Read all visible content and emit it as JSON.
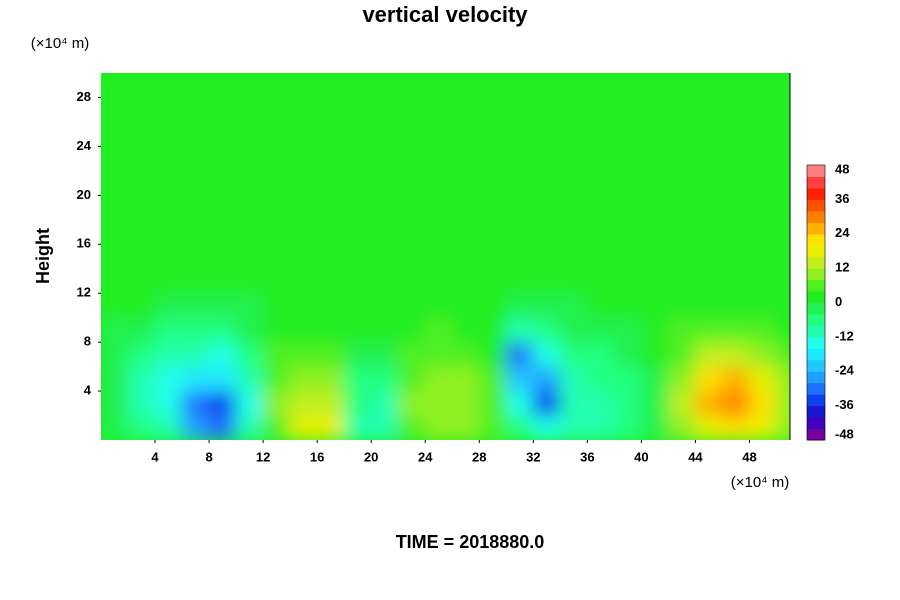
{
  "chart_data": {
    "type": "contour",
    "title": "vertical velocity",
    "ylabel": "Height",
    "xunit": "(×10⁴ m)",
    "yunit": "(×10⁴ m)",
    "footer": "TIME = 2018880.0",
    "xlim": [
      0,
      51
    ],
    "ylim": [
      0,
      30
    ],
    "xticks": [
      4,
      8,
      12,
      16,
      20,
      24,
      28,
      32,
      36,
      40,
      44,
      48
    ],
    "yticks": [
      4,
      8,
      12,
      16,
      20,
      24,
      28
    ],
    "x": [
      1,
      3,
      5,
      7,
      9,
      11,
      13,
      15,
      17,
      19,
      21,
      23,
      25,
      27,
      29,
      31,
      33,
      35,
      37,
      39,
      41,
      43,
      45,
      47,
      49,
      51
    ],
    "y": [
      1,
      3,
      5,
      7,
      9,
      11,
      13,
      15,
      17,
      19,
      21,
      23,
      25,
      27,
      29
    ],
    "z": [
      [
        -4,
        -8,
        -12,
        -26,
        -32,
        -12,
        6,
        16,
        18,
        -10,
        -12,
        6,
        8,
        8,
        6,
        -6,
        -14,
        -10,
        -10,
        -8,
        -4,
        8,
        18,
        22,
        16,
        8
      ],
      [
        -4,
        -10,
        -14,
        -30,
        -36,
        -14,
        8,
        14,
        12,
        -8,
        -10,
        8,
        10,
        10,
        6,
        -16,
        -34,
        -12,
        -10,
        -8,
        -4,
        12,
        24,
        30,
        20,
        10
      ],
      [
        -4,
        -10,
        -14,
        -18,
        -20,
        -12,
        6,
        10,
        8,
        -6,
        -6,
        6,
        8,
        8,
        4,
        -24,
        -28,
        -10,
        -8,
        -6,
        -2,
        10,
        20,
        26,
        18,
        8
      ],
      [
        -2,
        -8,
        -12,
        -12,
        -14,
        -8,
        4,
        6,
        6,
        -2,
        -2,
        4,
        6,
        6,
        2,
        -30,
        -16,
        -6,
        -6,
        -4,
        0,
        6,
        12,
        14,
        10,
        6
      ],
      [
        -1,
        -4,
        -6,
        -6,
        -6,
        -4,
        2,
        2,
        2,
        0,
        0,
        2,
        4,
        2,
        0,
        -12,
        -6,
        -4,
        -4,
        -2,
        0,
        4,
        6,
        6,
        4,
        2
      ],
      [
        0,
        0,
        -2,
        -2,
        -2,
        -2,
        0,
        0,
        0,
        0,
        0,
        0,
        2,
        2,
        0,
        -2,
        -2,
        -2,
        0,
        0,
        0,
        0,
        2,
        2,
        0,
        0
      ],
      [
        0,
        0,
        0,
        0,
        0,
        0,
        0,
        0,
        0,
        0,
        0,
        0,
        0,
        2,
        0,
        0,
        0,
        0,
        0,
        0,
        0,
        0,
        0,
        0,
        0,
        0
      ],
      [
        0,
        0,
        0,
        0,
        0,
        0,
        0,
        0,
        0,
        0,
        0,
        0,
        0,
        0,
        0,
        0,
        0,
        0,
        0,
        0,
        0,
        0,
        0,
        0,
        0,
        0
      ],
      [
        0,
        0,
        0,
        0,
        0,
        0,
        0,
        0,
        0,
        0,
        0,
        0,
        0,
        0,
        0,
        0,
        0,
        0,
        0,
        0,
        0,
        0,
        0,
        0,
        0,
        0
      ],
      [
        0,
        0,
        0,
        0,
        0,
        0,
        0,
        0,
        0,
        0,
        0,
        0,
        0,
        0,
        0,
        0,
        0,
        0,
        0,
        0,
        0,
        0,
        0,
        0,
        0,
        0
      ],
      [
        0,
        0,
        0,
        0,
        0,
        0,
        0,
        0,
        0,
        0,
        0,
        0,
        0,
        0,
        0,
        0,
        0,
        0,
        0,
        0,
        0,
        0,
        0,
        0,
        0,
        0
      ],
      [
        0,
        0,
        0,
        0,
        0,
        0,
        0,
        0,
        0,
        0,
        0,
        0,
        0,
        0,
        0,
        0,
        0,
        0,
        0,
        0,
        0,
        0,
        0,
        0,
        0,
        0
      ],
      [
        0,
        0,
        0,
        0,
        0,
        0,
        0,
        0,
        0,
        0,
        0,
        0,
        0,
        0,
        0,
        0,
        0,
        0,
        0,
        0,
        0,
        0,
        0,
        0,
        0,
        0
      ],
      [
        0,
        0,
        0,
        0,
        0,
        0,
        0,
        0,
        0,
        0,
        0,
        0,
        0,
        0,
        0,
        0,
        0,
        0,
        0,
        0,
        0,
        0,
        0,
        0,
        0,
        0
      ],
      [
        0,
        0,
        0,
        0,
        0,
        0,
        0,
        0,
        0,
        0,
        0,
        0,
        0,
        0,
        0,
        0,
        0,
        0,
        0,
        0,
        0,
        0,
        0,
        0,
        0,
        0
      ]
    ],
    "zlim": [
      -48,
      48
    ],
    "zticks": [
      -48,
      -36,
      -24,
      -12,
      0,
      12,
      24,
      36,
      48
    ],
    "band_colors": [
      "#7000a0",
      "#4000c0",
      "#1818d0",
      "#1040f0",
      "#2070ff",
      "#20a0ff",
      "#20c8ff",
      "#20e8ff",
      "#20ffe8",
      "#20ffb0",
      "#20ff80",
      "#20f050",
      "#20ee20",
      "#50f020",
      "#90f020",
      "#c0f020",
      "#e8f000",
      "#ffe000",
      "#ffb000",
      "#ff8000",
      "#ff5000",
      "#ff2000",
      "#ff4040",
      "#ff8080"
    ]
  }
}
